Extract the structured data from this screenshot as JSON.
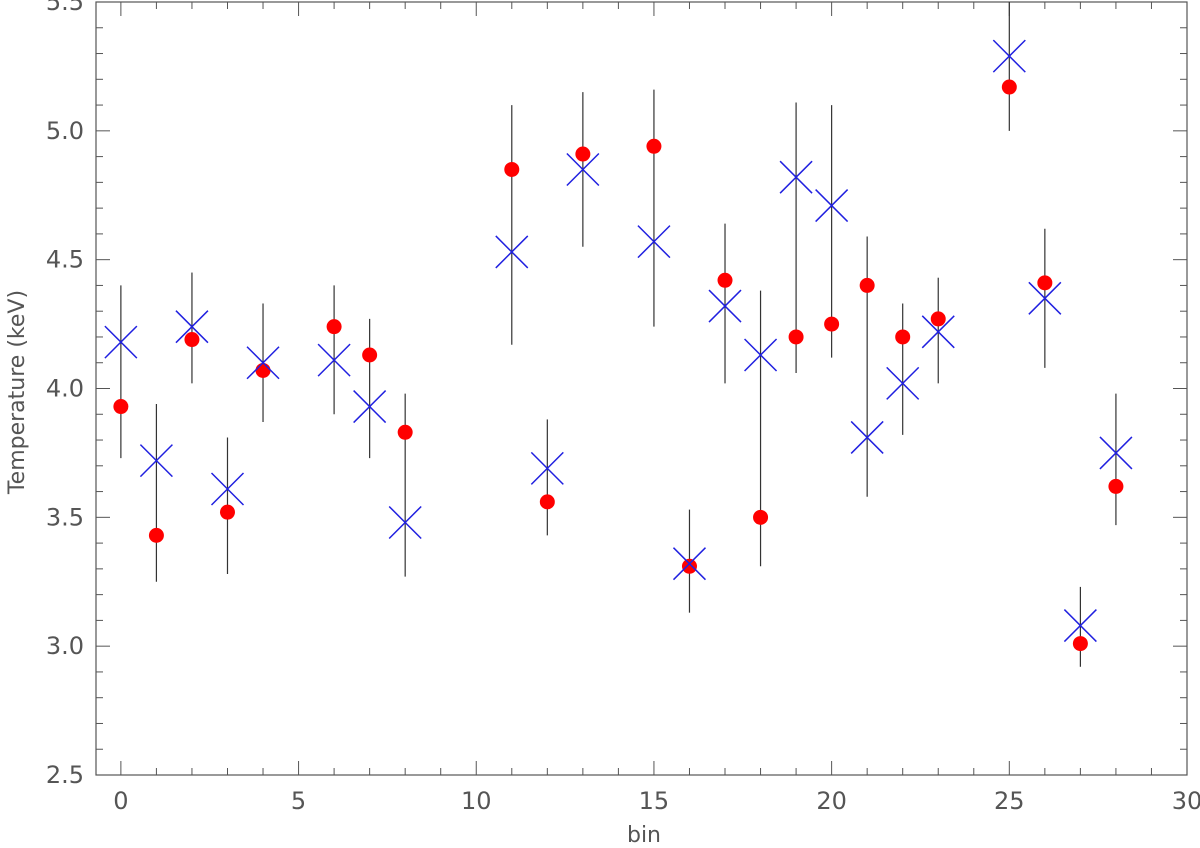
{
  "chart_data": {
    "type": "scatter",
    "title": "",
    "xlabel": "bin",
    "ylabel": "Temperature (keV)",
    "xlim": [
      -0.7,
      30
    ],
    "ylim": [
      2.5,
      5.5
    ],
    "xticks": [
      0,
      5,
      10,
      15,
      20,
      25,
      30
    ],
    "xtick_labels": [
      "0",
      "5",
      "10",
      "15",
      "20",
      "25",
      "30"
    ],
    "yticks": [
      2.5,
      3.0,
      3.5,
      4.0,
      4.5,
      5.0,
      5.5
    ],
    "ytick_labels": [
      "2.5",
      "3.0",
      "3.5",
      "4.0",
      "4.5",
      "5.0",
      "5.5"
    ],
    "grid": false,
    "colors": {
      "axis": "#555555",
      "errorbar": "#333333",
      "dots": "#ff0000",
      "crosses": "#2020e0"
    },
    "series": [
      {
        "marker": "filled-circle",
        "color": "#ff0000",
        "points": [
          {
            "x": 0,
            "y": 3.93
          },
          {
            "x": 1,
            "y": 3.43
          },
          {
            "x": 2,
            "y": 4.19
          },
          {
            "x": 3,
            "y": 3.52
          },
          {
            "x": 4,
            "y": 4.07
          },
          {
            "x": 6,
            "y": 4.24
          },
          {
            "x": 7,
            "y": 4.13
          },
          {
            "x": 8,
            "y": 3.83
          },
          {
            "x": 11,
            "y": 4.85
          },
          {
            "x": 12,
            "y": 3.56
          },
          {
            "x": 13,
            "y": 4.91
          },
          {
            "x": 15,
            "y": 4.94
          },
          {
            "x": 16,
            "y": 3.31
          },
          {
            "x": 17,
            "y": 4.42
          },
          {
            "x": 18,
            "y": 3.5
          },
          {
            "x": 19,
            "y": 4.2
          },
          {
            "x": 20,
            "y": 4.25
          },
          {
            "x": 21,
            "y": 4.4
          },
          {
            "x": 22,
            "y": 4.2
          },
          {
            "x": 23,
            "y": 4.27
          },
          {
            "x": 25,
            "y": 5.17
          },
          {
            "x": 26,
            "y": 4.41
          },
          {
            "x": 27,
            "y": 3.01
          },
          {
            "x": 28,
            "y": 3.62
          }
        ]
      },
      {
        "marker": "x-cross",
        "color": "#2020e0",
        "points": [
          {
            "x": 0,
            "y": 4.18,
            "ylow": 3.73,
            "yhigh": 4.4
          },
          {
            "x": 1,
            "y": 3.72,
            "ylow": 3.25,
            "yhigh": 3.94
          },
          {
            "x": 2,
            "y": 4.24,
            "ylow": 4.02,
            "yhigh": 4.45
          },
          {
            "x": 3,
            "y": 3.61,
            "ylow": 3.28,
            "yhigh": 3.81
          },
          {
            "x": 4,
            "y": 4.1,
            "ylow": 3.87,
            "yhigh": 4.33
          },
          {
            "x": 6,
            "y": 4.11,
            "ylow": 3.9,
            "yhigh": 4.4
          },
          {
            "x": 7,
            "y": 3.93,
            "ylow": 3.73,
            "yhigh": 4.27
          },
          {
            "x": 8,
            "y": 3.48,
            "ylow": 3.27,
            "yhigh": 3.98
          },
          {
            "x": 11,
            "y": 4.53,
            "ylow": 4.17,
            "yhigh": 5.1
          },
          {
            "x": 12,
            "y": 3.69,
            "ylow": 3.43,
            "yhigh": 3.88
          },
          {
            "x": 13,
            "y": 4.85,
            "ylow": 4.55,
            "yhigh": 5.15
          },
          {
            "x": 15,
            "y": 4.57,
            "ylow": 4.24,
            "yhigh": 5.16
          },
          {
            "x": 16,
            "y": 3.32,
            "ylow": 3.13,
            "yhigh": 3.53
          },
          {
            "x": 17,
            "y": 4.32,
            "ylow": 4.02,
            "yhigh": 4.64
          },
          {
            "x": 18,
            "y": 4.13,
            "ylow": 3.31,
            "yhigh": 4.38
          },
          {
            "x": 19,
            "y": 4.82,
            "ylow": 4.06,
            "yhigh": 5.11
          },
          {
            "x": 20,
            "y": 4.71,
            "ylow": 4.12,
            "yhigh": 5.1
          },
          {
            "x": 21,
            "y": 3.81,
            "ylow": 3.58,
            "yhigh": 4.59
          },
          {
            "x": 22,
            "y": 4.02,
            "ylow": 3.82,
            "yhigh": 4.33
          },
          {
            "x": 23,
            "y": 4.22,
            "ylow": 4.02,
            "yhigh": 4.43
          },
          {
            "x": 25,
            "y": 5.29,
            "ylow": 5.0,
            "yhigh": 5.5
          },
          {
            "x": 26,
            "y": 4.35,
            "ylow": 4.08,
            "yhigh": 4.62
          },
          {
            "x": 27,
            "y": 3.08,
            "ylow": 2.92,
            "yhigh": 3.23
          },
          {
            "x": 28,
            "y": 3.75,
            "ylow": 3.47,
            "yhigh": 3.98
          }
        ]
      }
    ]
  }
}
